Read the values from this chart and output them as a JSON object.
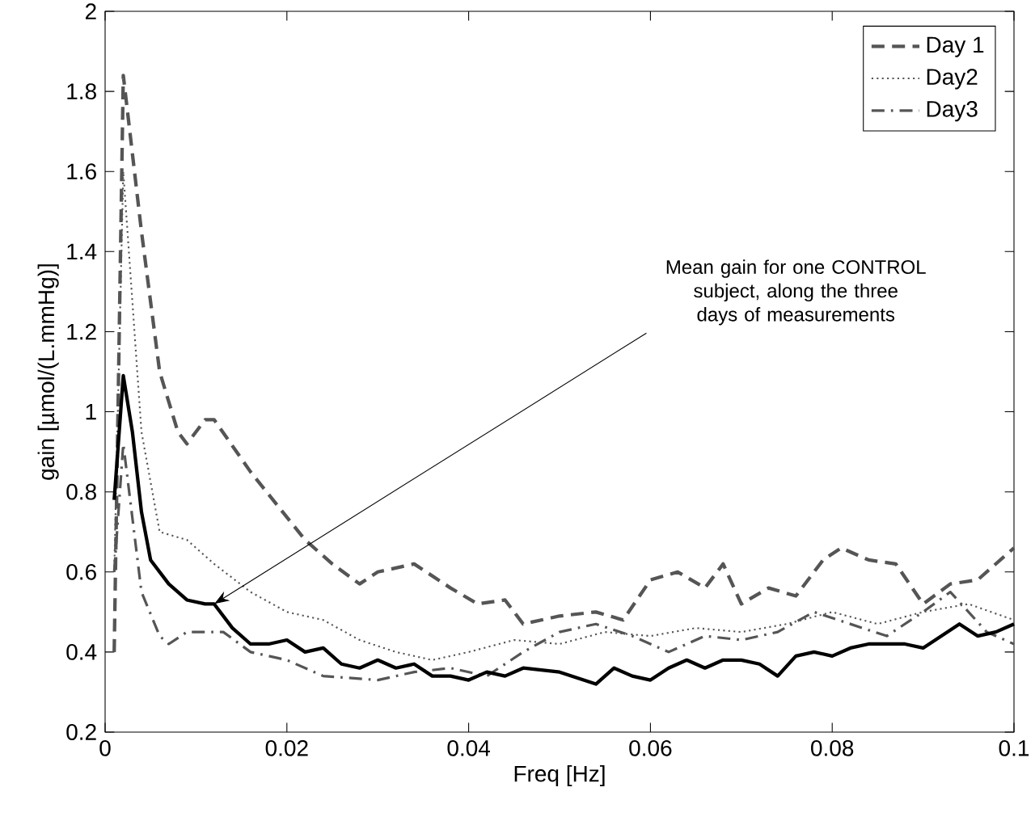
{
  "chart_data": {
    "type": "line",
    "xlabel": "Freq [Hz]",
    "ylabel": "gain [µmol/(L.mmHg)]",
    "xlim": [
      0,
      0.1
    ],
    "ylim": [
      0.2,
      2
    ],
    "xticks": [
      0,
      0.02,
      0.04,
      0.06,
      0.08,
      0.1
    ],
    "yticks": [
      0.2,
      0.4,
      0.6,
      0.8,
      1,
      1.2,
      1.4,
      1.6,
      1.8,
      2
    ],
    "legend": "top right",
    "grid": false,
    "series": [
      {
        "name": "Day 1",
        "color": "#555555",
        "line_style": "dashed",
        "x": [
          0.001,
          0.002,
          0.004,
          0.006,
          0.008,
          0.009,
          0.011,
          0.012,
          0.016,
          0.022,
          0.025,
          0.028,
          0.03,
          0.034,
          0.038,
          0.041,
          0.044,
          0.046,
          0.05,
          0.054,
          0.057,
          0.06,
          0.063,
          0.066,
          0.068,
          0.07,
          0.073,
          0.076,
          0.079,
          0.081,
          0.084,
          0.087,
          0.09,
          0.093,
          0.096,
          0.1
        ],
        "values": [
          0.4,
          1.84,
          1.45,
          1.1,
          0.95,
          0.92,
          0.98,
          0.98,
          0.85,
          0.68,
          0.62,
          0.57,
          0.6,
          0.62,
          0.56,
          0.52,
          0.53,
          0.47,
          0.49,
          0.5,
          0.48,
          0.58,
          0.6,
          0.56,
          0.62,
          0.52,
          0.56,
          0.54,
          0.63,
          0.66,
          0.63,
          0.62,
          0.52,
          0.57,
          0.58,
          0.66
        ]
      },
      {
        "name": "Day2",
        "color": "#555555",
        "line_style": "dotted",
        "x": [
          0.001,
          0.002,
          0.004,
          0.006,
          0.009,
          0.012,
          0.016,
          0.02,
          0.024,
          0.028,
          0.032,
          0.036,
          0.04,
          0.045,
          0.05,
          0.055,
          0.06,
          0.065,
          0.07,
          0.075,
          0.08,
          0.085,
          0.09,
          0.095,
          0.1
        ],
        "values": [
          0.6,
          1.6,
          0.95,
          0.7,
          0.68,
          0.62,
          0.55,
          0.5,
          0.48,
          0.43,
          0.4,
          0.38,
          0.4,
          0.43,
          0.42,
          0.45,
          0.44,
          0.46,
          0.45,
          0.47,
          0.5,
          0.47,
          0.5,
          0.52,
          0.48
        ]
      },
      {
        "name": "Day3",
        "color": "#555555",
        "line_style": "dashdot",
        "x": [
          0.001,
          0.002,
          0.004,
          0.006,
          0.007,
          0.009,
          0.013,
          0.016,
          0.02,
          0.024,
          0.03,
          0.034,
          0.038,
          0.042,
          0.046,
          0.05,
          0.054,
          0.058,
          0.062,
          0.066,
          0.07,
          0.074,
          0.078,
          0.082,
          0.086,
          0.09,
          0.093,
          0.097,
          0.1
        ],
        "values": [
          0.6,
          0.92,
          0.55,
          0.44,
          0.42,
          0.45,
          0.45,
          0.4,
          0.38,
          0.34,
          0.33,
          0.35,
          0.36,
          0.34,
          0.4,
          0.45,
          0.47,
          0.44,
          0.4,
          0.44,
          0.43,
          0.45,
          0.5,
          0.47,
          0.44,
          0.5,
          0.55,
          0.45,
          0.42
        ]
      },
      {
        "color": "#000000",
        "line_style": "solid",
        "x": [
          0.001,
          0.002,
          0.003,
          0.004,
          0.005,
          0.007,
          0.009,
          0.011,
          0.012,
          0.014,
          0.016,
          0.018,
          0.02,
          0.022,
          0.024,
          0.026,
          0.028,
          0.03,
          0.032,
          0.034,
          0.036,
          0.038,
          0.04,
          0.042,
          0.044,
          0.046,
          0.05,
          0.054,
          0.056,
          0.058,
          0.06,
          0.062,
          0.064,
          0.066,
          0.068,
          0.07,
          0.072,
          0.074,
          0.076,
          0.078,
          0.08,
          0.082,
          0.084,
          0.086,
          0.088,
          0.09,
          0.092,
          0.094,
          0.096,
          0.098,
          0.1
        ],
        "values": [
          0.78,
          1.09,
          0.95,
          0.75,
          0.63,
          0.57,
          0.53,
          0.52,
          0.52,
          0.46,
          0.42,
          0.42,
          0.43,
          0.4,
          0.41,
          0.37,
          0.36,
          0.38,
          0.36,
          0.37,
          0.34,
          0.34,
          0.33,
          0.35,
          0.34,
          0.36,
          0.35,
          0.32,
          0.36,
          0.34,
          0.33,
          0.36,
          0.38,
          0.36,
          0.38,
          0.38,
          0.37,
          0.34,
          0.39,
          0.4,
          0.39,
          0.41,
          0.42,
          0.42,
          0.42,
          0.41,
          0.44,
          0.47,
          0.44,
          0.45,
          0.47
        ]
      }
    ],
    "annotations": [
      {
        "text": "Mean gain for one CONTROL subject, along the three days of measurements",
        "x": 0.012,
        "y": 0.52
      }
    ]
  }
}
